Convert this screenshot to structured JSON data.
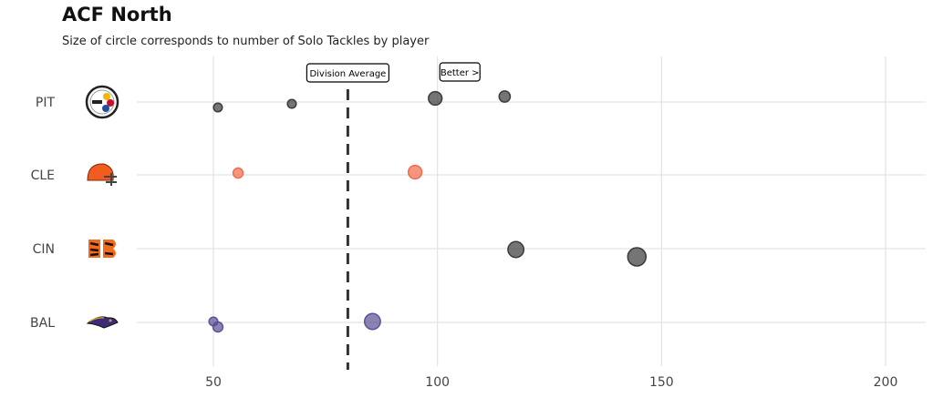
{
  "chart_data": {
    "type": "scatter",
    "title": "ACF North",
    "subtitle": "Size of circle corresponds to number of Solo Tackles by player",
    "xlabel": "",
    "ylabel": "",
    "xlim": [
      20,
      210
    ],
    "xticks": [
      50,
      100,
      150,
      200
    ],
    "categories": [
      "PIT",
      "CLE",
      "CIN",
      "BAL"
    ],
    "division_average": 80,
    "annotations": {
      "average_label": "Division Average",
      "better_label": "Better >",
      "better_x": 105
    },
    "grid": true,
    "series": [
      {
        "team": "PIT",
        "color": "#3a3a3a",
        "points": [
          {
            "x": 51,
            "size": 1
          },
          {
            "x": 67.5,
            "size": 1
          },
          {
            "x": 99.5,
            "size": 3
          },
          {
            "x": 115,
            "size": 2
          }
        ]
      },
      {
        "team": "CLE",
        "color": "#f26a4b",
        "points": [
          {
            "x": 55.5,
            "size": 1.5
          },
          {
            "x": 95,
            "size": 3
          }
        ]
      },
      {
        "team": "CIN",
        "color": "#3a3a3a",
        "points": [
          {
            "x": 117.5,
            "size": 4
          },
          {
            "x": 144.5,
            "size": 5
          }
        ]
      },
      {
        "team": "BAL",
        "color": "#5b4f96",
        "points": [
          {
            "x": 50,
            "size": 1
          },
          {
            "x": 51,
            "size": 1.5
          },
          {
            "x": 85.5,
            "size": 4
          }
        ]
      }
    ]
  }
}
